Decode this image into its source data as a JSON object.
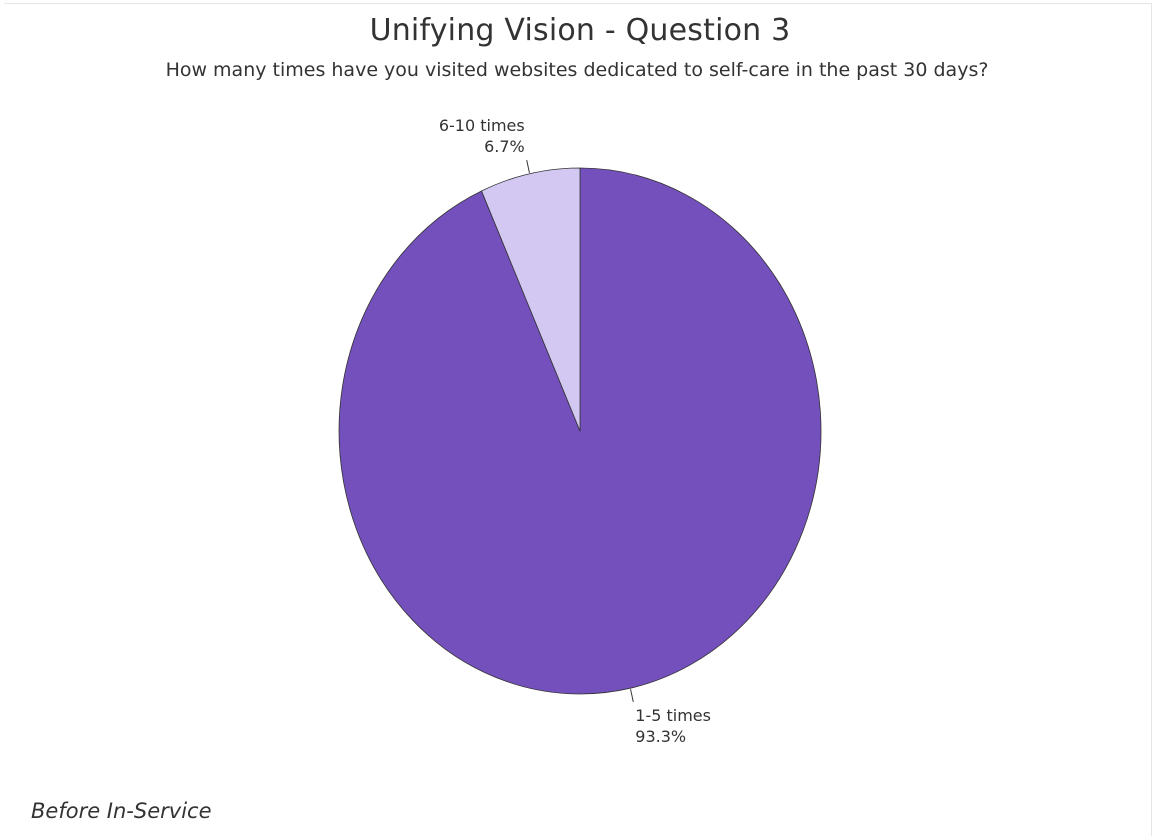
{
  "chart_data": {
    "type": "pie",
    "title": "Unifying Vision - Question 3",
    "subtitle": "How many times have you visited websites dedicated to self-care in the past 30 days?",
    "categories": [
      "1-5 times",
      "6-10 times"
    ],
    "values": [
      93.3,
      6.7
    ],
    "value_labels": [
      "93.3%",
      "6.7%"
    ],
    "colors": [
      "#7450bc",
      "#d2c8f2"
    ],
    "slice_border_color": "#333333",
    "start_angle_deg": 0,
    "direction": "clockwise",
    "legend": "none"
  },
  "footnote": "Before In-Service"
}
